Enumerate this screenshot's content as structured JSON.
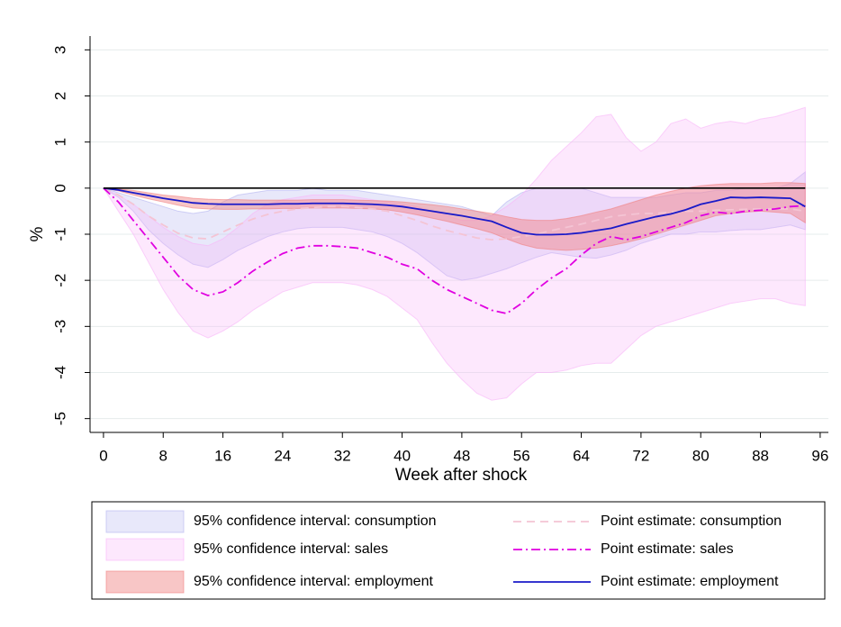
{
  "chart_data": {
    "type": "band-line",
    "x_label": "Week after shock",
    "y_label": "%",
    "xlim": [
      -1.8,
      97.1
    ],
    "ylim": [
      -5.3,
      3.3
    ],
    "xticks": [
      0,
      8,
      16,
      24,
      32,
      40,
      48,
      56,
      64,
      72,
      80,
      88,
      96
    ],
    "yticks": [
      -5,
      -4,
      -3,
      -2,
      -1,
      0,
      1,
      2,
      3
    ],
    "grid": true,
    "reference_line": 0,
    "legend": "bottom",
    "x": [
      0,
      2,
      4,
      6,
      8,
      10,
      12,
      14,
      16,
      18,
      20,
      22,
      24,
      26,
      28,
      30,
      32,
      34,
      36,
      38,
      40,
      42,
      44,
      46,
      48,
      50,
      52,
      54,
      56,
      58,
      60,
      62,
      64,
      66,
      68,
      70,
      72,
      74,
      76,
      78,
      80,
      82,
      84,
      86,
      88,
      90,
      92,
      94
    ],
    "series": [
      {
        "name": "95% confidence interval: consumption",
        "kind": "band",
        "color": "#b4b4f0",
        "upper": [
          0,
          -0.1,
          -0.2,
          -0.3,
          -0.4,
          -0.5,
          -0.55,
          -0.5,
          -0.3,
          -0.15,
          -0.1,
          -0.05,
          -0.05,
          -0.05,
          0,
          -0.05,
          -0.05,
          -0.05,
          -0.1,
          -0.15,
          -0.2,
          -0.25,
          -0.3,
          -0.35,
          -0.4,
          -0.5,
          -0.6,
          -0.3,
          -0.1,
          0,
          0,
          0,
          0,
          -0.1,
          -0.2,
          -0.2,
          -0.2,
          -0.2,
          -0.15,
          -0.1,
          -0.1,
          -0.05,
          -0.05,
          0,
          0,
          0,
          0.1,
          0.35
        ],
        "lower": [
          0,
          -0.2,
          -0.5,
          -0.9,
          -1.2,
          -1.45,
          -1.65,
          -1.72,
          -1.55,
          -1.35,
          -1.2,
          -1.05,
          -0.95,
          -0.88,
          -0.85,
          -0.85,
          -0.85,
          -0.9,
          -0.95,
          -1.05,
          -1.2,
          -1.4,
          -1.65,
          -1.9,
          -2.0,
          -1.95,
          -1.85,
          -1.75,
          -1.62,
          -1.5,
          -1.4,
          -1.45,
          -1.5,
          -1.52,
          -1.45,
          -1.35,
          -1.2,
          -1.1,
          -1.0,
          -1.0,
          -0.95,
          -0.95,
          -0.92,
          -0.9,
          -0.9,
          -0.85,
          -0.8,
          -0.9
        ]
      },
      {
        "name": "95% confidence interval: sales",
        "kind": "band",
        "color": "#f8b4f8",
        "upper": [
          0,
          -0.15,
          -0.35,
          -0.6,
          -0.85,
          -1.05,
          -1.2,
          -1.25,
          -1.1,
          -0.85,
          -0.55,
          -0.35,
          -0.25,
          -0.2,
          -0.15,
          -0.15,
          -0.15,
          -0.2,
          -0.25,
          -0.3,
          -0.35,
          -0.4,
          -0.5,
          -0.6,
          -0.7,
          -0.7,
          -0.6,
          -0.4,
          -0.15,
          0.2,
          0.6,
          0.9,
          1.2,
          1.55,
          1.6,
          1.1,
          0.8,
          1.0,
          1.4,
          1.5,
          1.3,
          1.4,
          1.45,
          1.4,
          1.5,
          1.55,
          1.65,
          1.75
        ],
        "lower": [
          0,
          -0.5,
          -1.0,
          -1.6,
          -2.2,
          -2.7,
          -3.1,
          -3.25,
          -3.1,
          -2.9,
          -2.65,
          -2.45,
          -2.25,
          -2.15,
          -2.05,
          -2.05,
          -2.05,
          -2.1,
          -2.2,
          -2.35,
          -2.6,
          -2.85,
          -3.35,
          -3.8,
          -4.15,
          -4.45,
          -4.6,
          -4.55,
          -4.25,
          -4.0,
          -4.0,
          -3.95,
          -3.85,
          -3.8,
          -3.8,
          -3.5,
          -3.2,
          -3.0,
          -2.9,
          -2.8,
          -2.7,
          -2.6,
          -2.5,
          -2.45,
          -2.4,
          -2.4,
          -2.5,
          -2.55
        ]
      },
      {
        "name": "95% confidence interval: employment",
        "kind": "band",
        "color": "#f08080",
        "upper": [
          0,
          -0.02,
          -0.05,
          -0.1,
          -0.15,
          -0.18,
          -0.22,
          -0.24,
          -0.25,
          -0.25,
          -0.26,
          -0.26,
          -0.26,
          -0.26,
          -0.25,
          -0.25,
          -0.25,
          -0.26,
          -0.27,
          -0.28,
          -0.3,
          -0.33,
          -0.36,
          -0.4,
          -0.45,
          -0.5,
          -0.55,
          -0.62,
          -0.68,
          -0.7,
          -0.7,
          -0.66,
          -0.6,
          -0.52,
          -0.45,
          -0.35,
          -0.25,
          -0.15,
          -0.07,
          0.0,
          0.05,
          0.08,
          0.1,
          0.1,
          0.1,
          0.12,
          0.12,
          0.1
        ],
        "lower": [
          0,
          -0.06,
          -0.15,
          -0.23,
          -0.3,
          -0.37,
          -0.43,
          -0.45,
          -0.46,
          -0.46,
          -0.45,
          -0.45,
          -0.44,
          -0.44,
          -0.43,
          -0.43,
          -0.43,
          -0.44,
          -0.45,
          -0.47,
          -0.52,
          -0.58,
          -0.65,
          -0.72,
          -0.8,
          -0.88,
          -0.97,
          -1.1,
          -1.22,
          -1.3,
          -1.33,
          -1.35,
          -1.33,
          -1.3,
          -1.25,
          -1.18,
          -1.1,
          -1.0,
          -0.9,
          -0.8,
          -0.7,
          -0.6,
          -0.55,
          -0.52,
          -0.5,
          -0.52,
          -0.55,
          -0.75
        ]
      },
      {
        "name": "Point estimate: consumption",
        "kind": "line",
        "dash": "dashed",
        "color": "#f4c4d4",
        "values": [
          0,
          -0.15,
          -0.35,
          -0.6,
          -0.8,
          -0.98,
          -1.08,
          -1.1,
          -0.95,
          -0.8,
          -0.67,
          -0.57,
          -0.5,
          -0.45,
          -0.42,
          -0.4,
          -0.4,
          -0.42,
          -0.45,
          -0.5,
          -0.6,
          -0.7,
          -0.82,
          -0.92,
          -1.0,
          -1.08,
          -1.12,
          -1.1,
          -1.05,
          -1.0,
          -0.92,
          -0.85,
          -0.78,
          -0.7,
          -0.62,
          -0.58,
          -0.55,
          -0.55,
          -0.52,
          -0.5,
          -0.5,
          -0.48,
          -0.47,
          -0.46,
          -0.45,
          -0.45,
          -0.45,
          -0.5
        ]
      },
      {
        "name": "Point estimate: sales",
        "kind": "line",
        "dash": "dashdot",
        "color": "#e000e0",
        "values": [
          0,
          -0.3,
          -0.7,
          -1.1,
          -1.5,
          -1.9,
          -2.2,
          -2.33,
          -2.25,
          -2.05,
          -1.8,
          -1.6,
          -1.42,
          -1.3,
          -1.25,
          -1.25,
          -1.27,
          -1.3,
          -1.4,
          -1.5,
          -1.65,
          -1.75,
          -2.0,
          -2.2,
          -2.35,
          -2.5,
          -2.65,
          -2.72,
          -2.5,
          -2.2,
          -1.95,
          -1.75,
          -1.45,
          -1.2,
          -1.05,
          -1.12,
          -1.05,
          -0.95,
          -0.85,
          -0.75,
          -0.6,
          -0.52,
          -0.55,
          -0.5,
          -0.48,
          -0.45,
          -0.4,
          -0.38
        ]
      },
      {
        "name": "Point estimate: employment",
        "kind": "line",
        "dash": "solid",
        "color": "#1a1ac8",
        "values": [
          0,
          -0.04,
          -0.1,
          -0.16,
          -0.22,
          -0.27,
          -0.32,
          -0.34,
          -0.35,
          -0.35,
          -0.35,
          -0.35,
          -0.34,
          -0.34,
          -0.33,
          -0.33,
          -0.33,
          -0.34,
          -0.35,
          -0.37,
          -0.4,
          -0.45,
          -0.5,
          -0.55,
          -0.6,
          -0.66,
          -0.72,
          -0.85,
          -0.97,
          -1.01,
          -1.01,
          -1.0,
          -0.97,
          -0.92,
          -0.87,
          -0.78,
          -0.7,
          -0.62,
          -0.56,
          -0.47,
          -0.35,
          -0.28,
          -0.2,
          -0.21,
          -0.2,
          -0.21,
          -0.22,
          -0.4
        ]
      }
    ]
  }
}
